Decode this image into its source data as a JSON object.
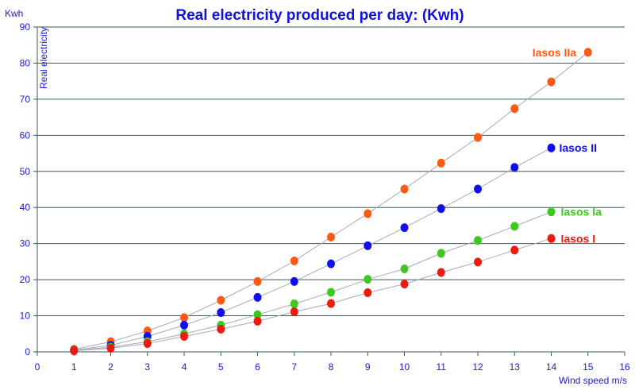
{
  "chart_data": {
    "type": "line",
    "title": "Real electricity produced per day: (Kwh)",
    "xlabel": "Wind speed  m/s",
    "ylabel": "Real electricity",
    "yunit": "Kwh",
    "xlim": [
      0,
      16
    ],
    "ylim": [
      0,
      90
    ],
    "xticks": [
      "0",
      "1",
      "2",
      "3",
      "4",
      "5",
      "6",
      "7",
      "8",
      "9",
      "10",
      "11",
      "12",
      "13",
      "14",
      "15",
      "16"
    ],
    "yticks": [
      "0",
      "10",
      "20",
      "30",
      "40",
      "50",
      "60",
      "70",
      "80",
      "90"
    ],
    "grid": "horizontal",
    "series": [
      {
        "name": "Iasos IIa",
        "color": "#ff5a14",
        "x": [
          1,
          2,
          3,
          4,
          5,
          6,
          7,
          8,
          9,
          10,
          11,
          12,
          13,
          14,
          15
        ],
        "values": [
          0.7,
          2.8,
          5.8,
          9.5,
          14.3,
          19.5,
          25.2,
          31.8,
          38.3,
          45.1,
          52.3,
          59.4,
          67.4,
          74.8,
          83.0
        ]
      },
      {
        "name": "Iasos II",
        "color": "#1010ee",
        "x": [
          1,
          2,
          3,
          4,
          5,
          6,
          7,
          8,
          9,
          10,
          11,
          12,
          13,
          14
        ],
        "values": [
          0.5,
          1.8,
          4.3,
          7.4,
          10.9,
          15.1,
          19.5,
          24.4,
          29.4,
          34.4,
          39.7,
          45.1,
          51.1,
          56.5
        ]
      },
      {
        "name": "Iasos Ia",
        "color": "#3cc81e",
        "x": [
          1,
          2,
          3,
          4,
          5,
          6,
          7,
          8,
          9,
          10,
          11,
          12,
          13,
          14
        ],
        "values": [
          0.4,
          1.3,
          2.8,
          5.0,
          7.4,
          10.3,
          13.3,
          16.5,
          20.1,
          23.0,
          27.3,
          30.9,
          34.8,
          38.8
        ]
      },
      {
        "name": "Iasos I",
        "color": "#ee1a10",
        "x": [
          1,
          2,
          3,
          4,
          5,
          6,
          7,
          8,
          9,
          10,
          11,
          12,
          13,
          14
        ],
        "values": [
          0.3,
          1.0,
          2.3,
          4.3,
          6.3,
          8.5,
          11.1,
          13.4,
          16.4,
          18.8,
          22.0,
          24.9,
          28.2,
          31.4
        ]
      }
    ]
  }
}
